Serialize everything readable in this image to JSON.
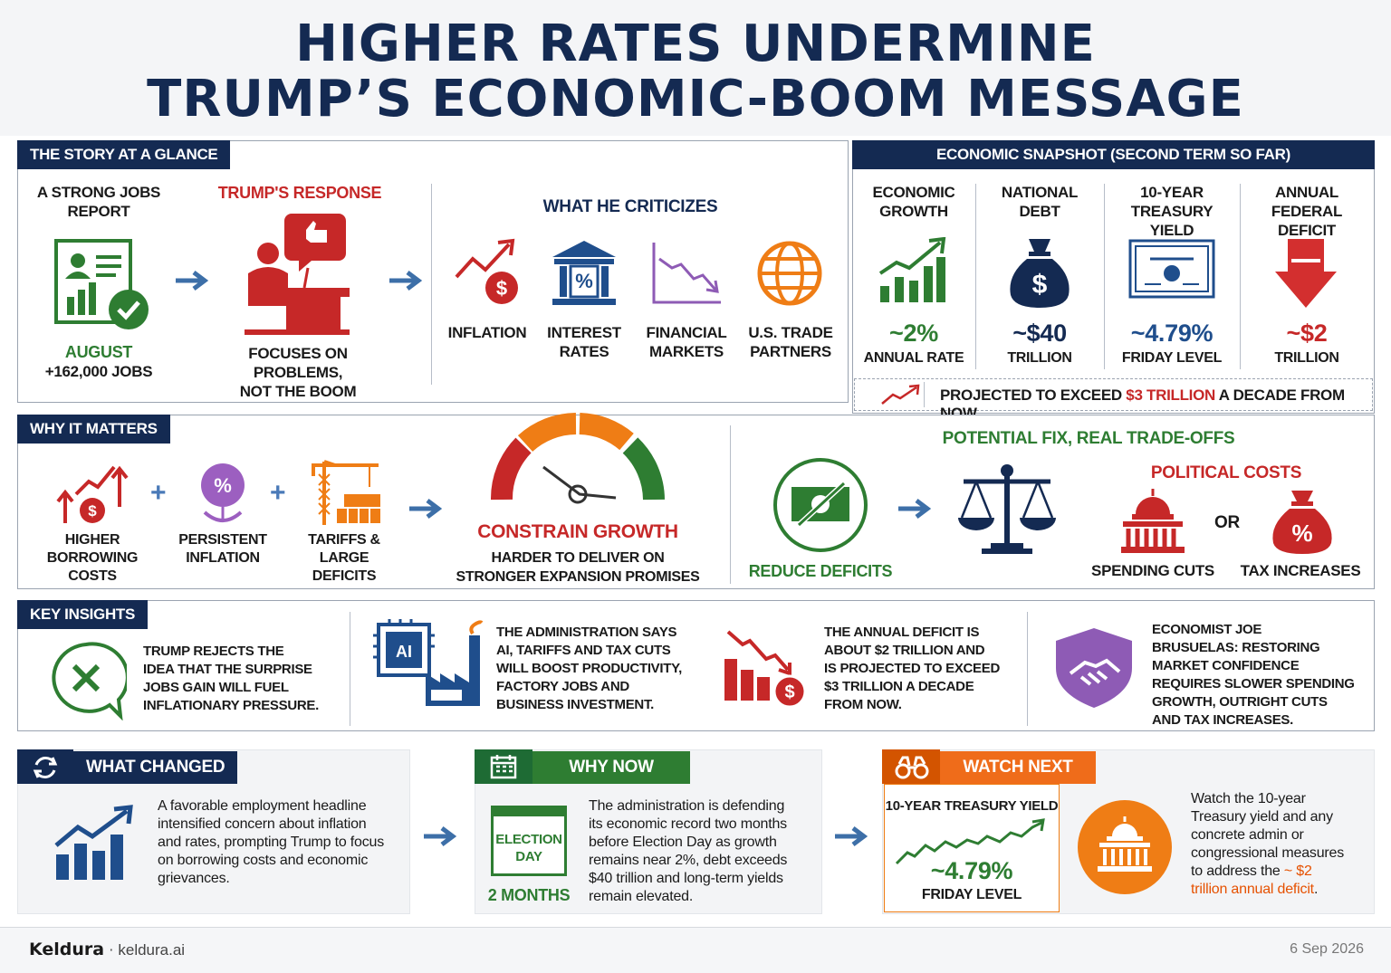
{
  "title_line1": "HIGHER RATES UNDERMINE",
  "title_line2": "TRUMP’S ECONOMIC-BOOM MESSAGE",
  "glance": {
    "tag": "THE STORY AT A GLANCE",
    "jobs_heading": "A STRONG JOBS\nREPORT",
    "jobs_month": "AUGUST",
    "jobs_value": "+162,000 JOBS",
    "response_heading": "TRUMP'S RESPONSE",
    "response_text": "FOCUSES ON PROBLEMS,\nNOT THE BOOM",
    "criticizes_heading": "WHAT HE CRITICIZES",
    "criticizes": [
      "INFLATION",
      "INTEREST\nRATES",
      "FINANCIAL\nMARKETS",
      "U.S. TRADE\nPARTNERS"
    ]
  },
  "snapshot": {
    "tag": "ECONOMIC SNAPSHOT (SECOND TERM SO FAR)",
    "items": [
      {
        "label": "ECONOMIC\nGROWTH",
        "value": "~2%",
        "unit": "ANNUAL RATE",
        "color": "#2e7d32"
      },
      {
        "label": "NATIONAL\nDEBT",
        "value": "~$40",
        "unit": "TRILLION",
        "color": "#142a52"
      },
      {
        "label": "10-YEAR\nTREASURY YIELD",
        "value": "~4.79%",
        "unit": "FRIDAY LEVEL",
        "color": "#1f4e8c"
      },
      {
        "label": "ANNUAL FEDERAL\nDEFICIT",
        "value": "~$2",
        "unit": "TRILLION",
        "color": "#c62828"
      }
    ],
    "projection_pre": "PROJECTED TO EXCEED ",
    "projection_highlight": "$3 TRILLION",
    "projection_post": " A DECADE FROM NOW"
  },
  "matters": {
    "tag": "WHY IT MATTERS",
    "factors": [
      "HIGHER BORROWING\nCOSTS",
      "PERSISTENT\nINFLATION",
      "TARIFFS & LARGE\nDEFICITS"
    ],
    "result": "CONSTRAIN GROWTH",
    "result_text": "HARDER TO DELIVER ON\nSTRONGER EXPANSION PROMISES",
    "fix_heading": "POTENTIAL FIX, REAL TRADE-OFFS",
    "fix_item": "REDUCE DEFICITS",
    "costs_heading": "POLITICAL COSTS",
    "cost_a": "SPENDING CUTS",
    "or": "OR",
    "cost_b": "TAX INCREASES"
  },
  "insights": {
    "tag": "KEY INSIGHTS",
    "items": [
      "TRUMP REJECTS THE\nIDEA THAT THE SURPRISE\nJOBS GAIN WILL FUEL\nINFLATIONARY PRESSURE.",
      "THE ADMINISTRATION SAYS\nAI, TARIFFS AND TAX CUTS\nWILL BOOST PRODUCTIVITY,\nFACTORY JOBS AND\nBUSINESS INVESTMENT.",
      "THE ANNUAL DEFICIT IS\nABOUT $2 TRILLION AND\nIS PROJECTED TO EXCEED\n$3 TRILLION A DECADE\nFROM NOW.",
      "ECONOMIST JOE\nBRUSUELAS: RESTORING\nMARKET CONFIDENCE\nREQUIRES SLOWER SPENDING\nGROWTH, OUTRIGHT CUTS\nAND TAX INCREASES."
    ],
    "ai_chip": "AI"
  },
  "changed": {
    "tag": "WHAT CHANGED",
    "text": "A favorable employment headline\nintensified concern about inflation\nand rates, prompting Trump to focus\non borrowing costs and economic\ngrievances."
  },
  "why_now": {
    "tag": "WHY NOW",
    "calendar": "ELECTION\nDAY",
    "months": "2 MONTHS",
    "text": "The administration is defending\nits economic record two months\nbefore Election Day as growth\nremains near 2%, debt exceeds\n$40 trillion and long-term yields\nremain elevated."
  },
  "watch": {
    "tag": "WATCH NEXT",
    "yield_label": "10-YEAR TREASURY YIELD",
    "yield_value": "~4.79%",
    "yield_unit": "FRIDAY LEVEL",
    "text_pre": "Watch the 10-year\nTreasury yield and any\nconcrete admin or\ncongressional measures\nto address the ",
    "text_highlight": "~ $2\ntrillion annual deficit",
    "text_post": "."
  },
  "footer": {
    "brand": "Keldura",
    "site": "keldura.ai",
    "date": "6 Sep 2026"
  },
  "colors": {
    "navy": "#142a52",
    "red": "#c62828",
    "green": "#2e7d32",
    "orange": "#e65100",
    "purple": "#7b4fa6"
  }
}
